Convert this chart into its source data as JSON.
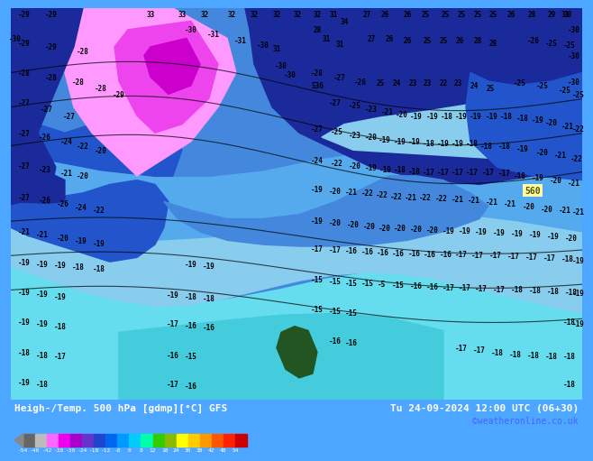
{
  "title_left": "Heigh-/Temp. 500 hPa [gdmp][°C] GFS",
  "title_right": "Tu 24-09-2024 12:00 UTC (06+30)",
  "credit": "©weatheronline.co.uk",
  "colorbar_bounds": [
    -54,
    -48,
    -42,
    -38,
    -30,
    -24,
    -18,
    -12,
    -8,
    0,
    8,
    12,
    18,
    24,
    30,
    38,
    42,
    48,
    54
  ],
  "colorbar_tick_labels": [
    "-54",
    "-48",
    "-42",
    "-38",
    "-30",
    "-24",
    "-18",
    "-12",
    "-8",
    "0",
    "8",
    "12",
    "18",
    "24",
    "30",
    "38",
    "42",
    "48",
    "54"
  ],
  "colorbar_colors": [
    "#666666",
    "#bbbbbb",
    "#ff66ff",
    "#ee00ee",
    "#aa00cc",
    "#6633cc",
    "#2244cc",
    "#0066ee",
    "#0099ff",
    "#00ccff",
    "#00ffaa",
    "#33cc00",
    "#88bb00",
    "#ffff00",
    "#ffcc00",
    "#ff9900",
    "#ff5500",
    "#ff2200",
    "#cc0000"
  ],
  "bg_color": "#4da6ff",
  "bottom_bar_color": "#000000",
  "title_color_left": "#ffffff",
  "title_color_right": "#ffffff",
  "credit_color": "#4444ff",
  "map_colors": {
    "deep_blue": "#1a2a9a",
    "mid_blue": "#2255cc",
    "sky_blue": "#4488dd",
    "light_blue": "#55aaee",
    "pale_blue": "#88ccee",
    "cyan": "#44ccdd",
    "light_cyan": "#66ddee",
    "pink": "#ff99ff",
    "magenta": "#ee44ee",
    "dark_magenta": "#cc00cc",
    "green": "#225522"
  }
}
